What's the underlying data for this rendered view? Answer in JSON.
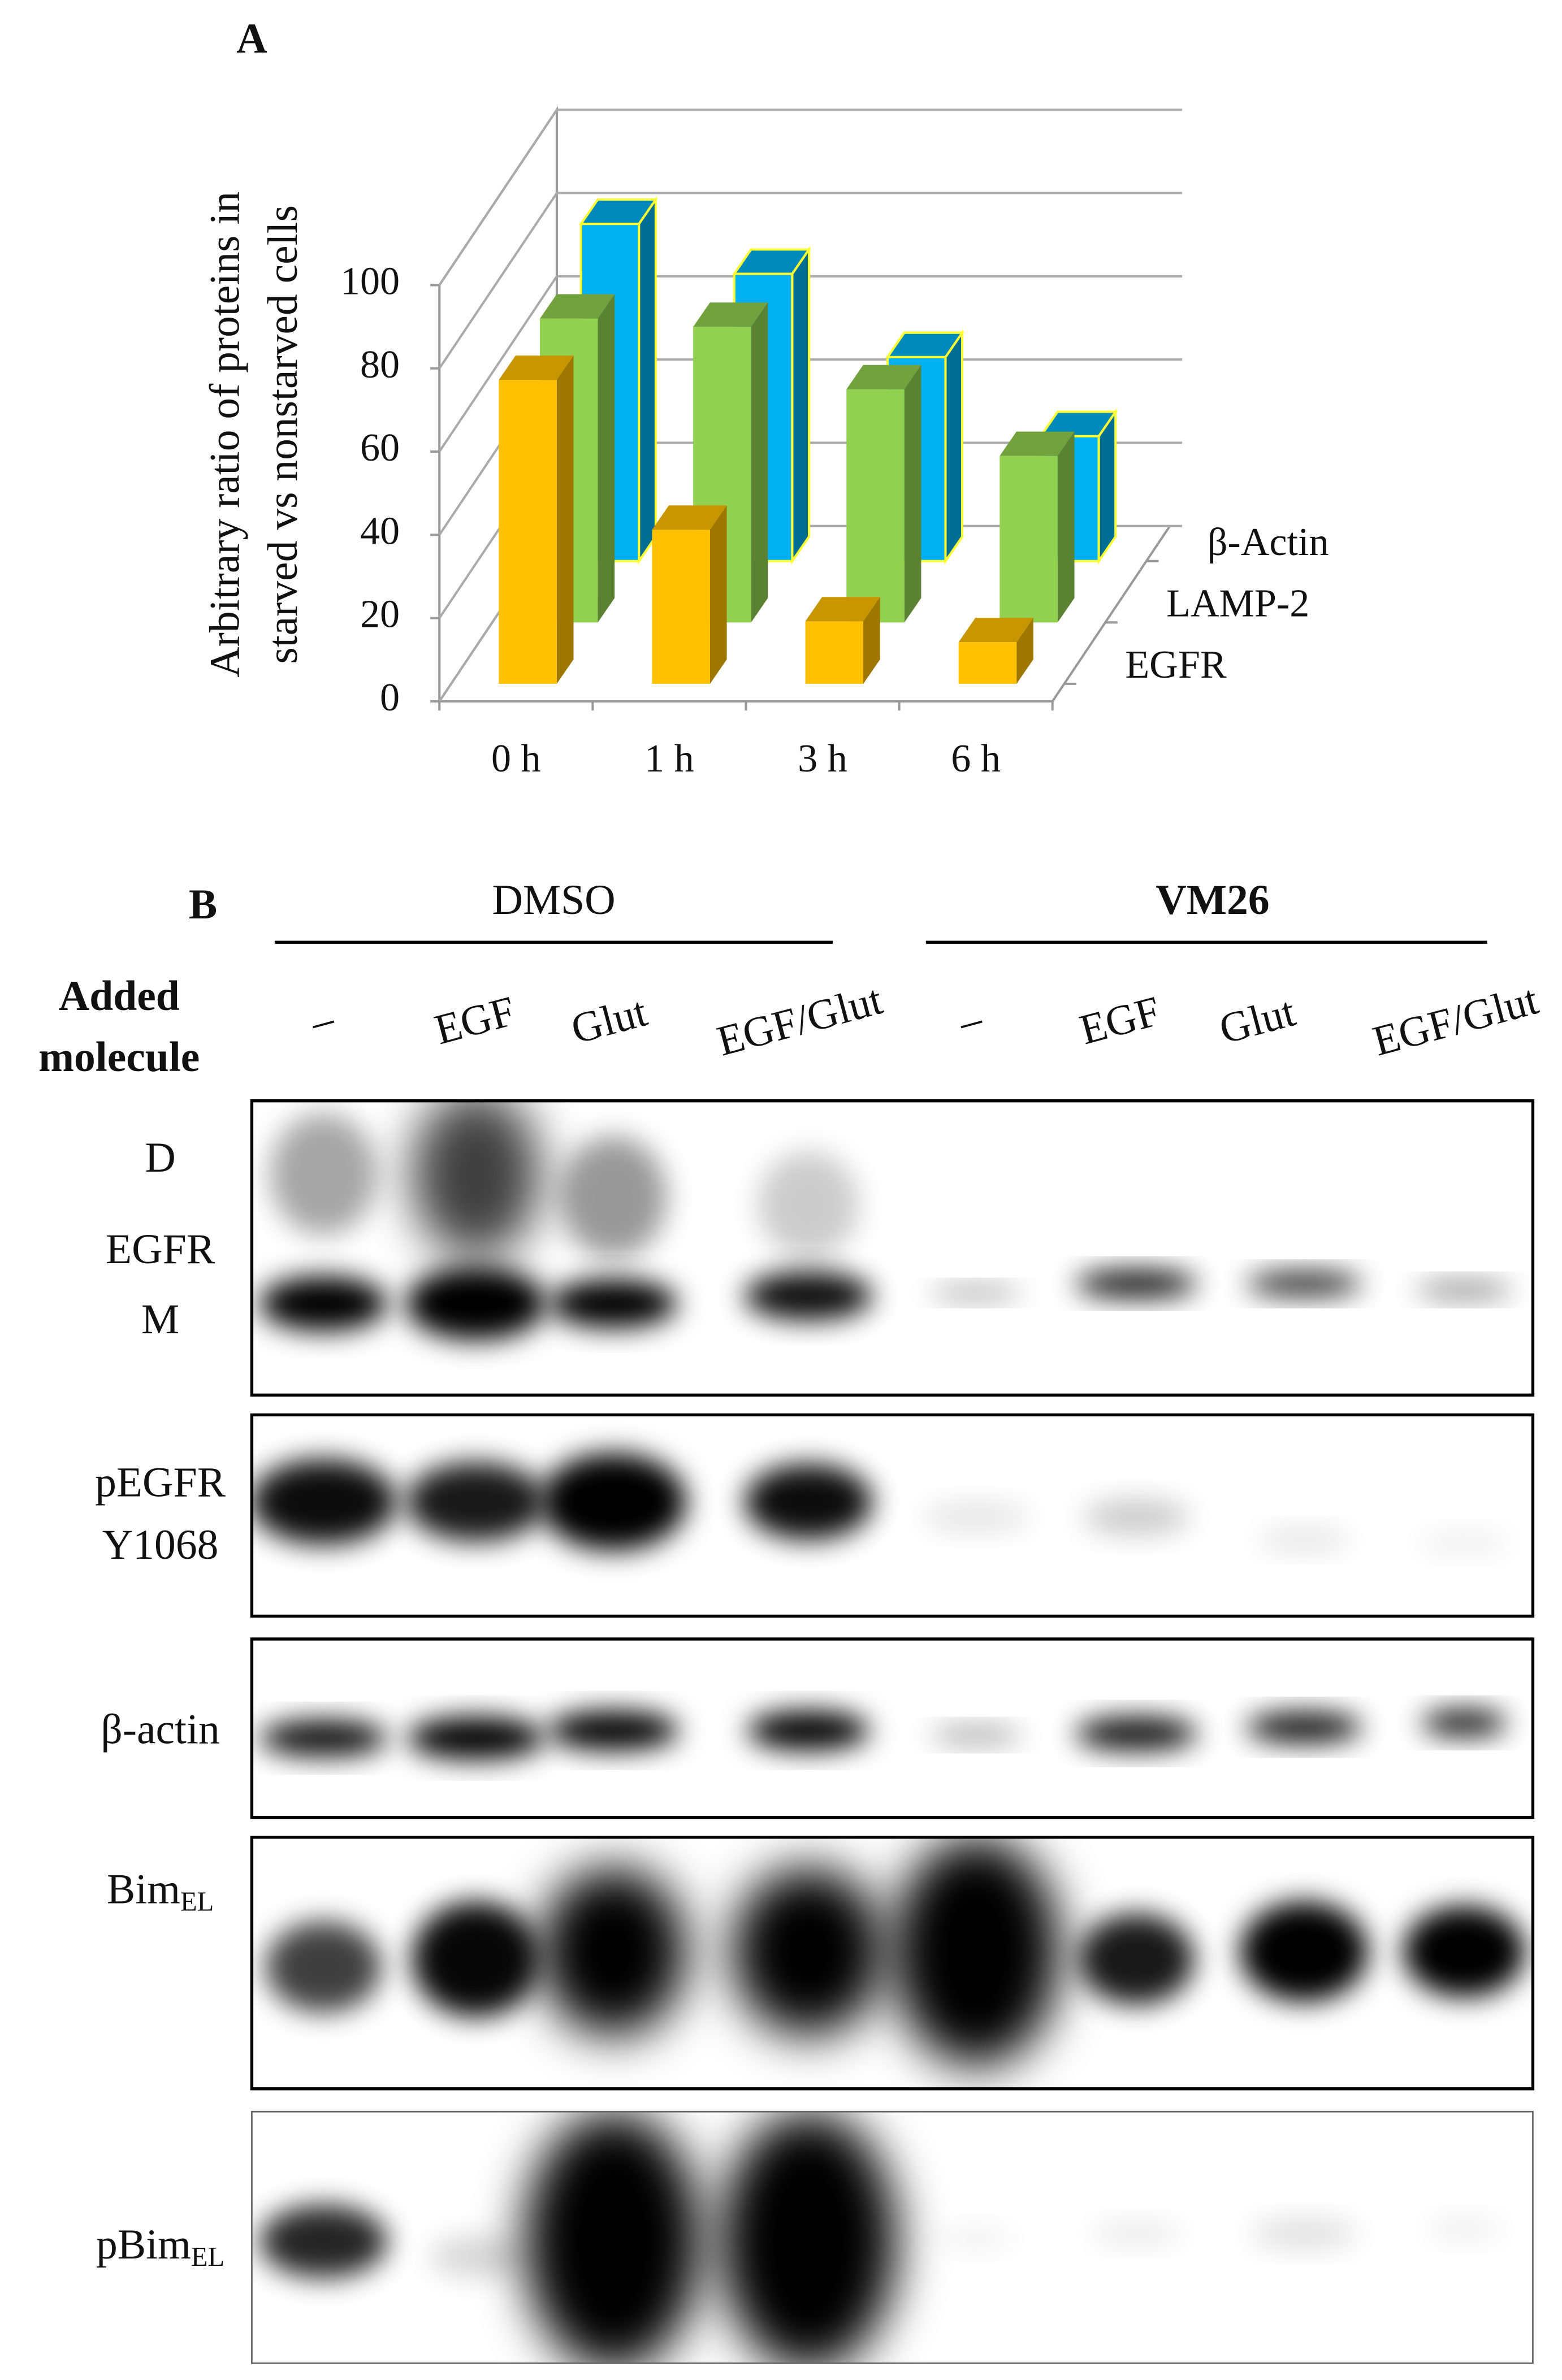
{
  "chart_data": {
    "type": "bar",
    "panel_label": "A",
    "ylabel": [
      "Arbitrary ratio of proteins in",
      "starved vs nonstarved cells"
    ],
    "categories": [
      "0 h",
      "1 h",
      "3 h",
      "6 h"
    ],
    "series": [
      {
        "name": "EGFR",
        "color": "#ffc000",
        "values": [
          73,
          37,
          15,
          10
        ]
      },
      {
        "name": "LAMP-2",
        "color": "#92d050",
        "values": [
          73,
          71,
          56,
          40
        ]
      },
      {
        "name": "β-Actin",
        "color": "#00b0f0",
        "edge_color": "#ffff33",
        "values": [
          81,
          69,
          49,
          30
        ]
      }
    ],
    "ylim": [
      0,
      100
    ],
    "yticks": [
      0,
      20,
      40,
      60,
      80,
      100
    ],
    "grid": true
  },
  "panel_b": {
    "panel_label": "B",
    "groups": [
      "DMSO",
      "VM26"
    ],
    "row_header": [
      "Added",
      "molecule"
    ],
    "lanes": [
      "–",
      "EGF",
      "Glut",
      "EGF/Glut",
      "–",
      "EGF",
      "Glut",
      "EGF/Glut"
    ],
    "blots": [
      {
        "labels": [
          "D",
          "EGFR",
          "M"
        ]
      },
      {
        "labels": [
          "pEGFR",
          "Y1068"
        ]
      },
      {
        "labels": [
          "β-actin"
        ]
      },
      {
        "label": "Bim",
        "subscript": "EL"
      },
      {
        "label": "pBim",
        "subscript": "EL"
      }
    ]
  }
}
